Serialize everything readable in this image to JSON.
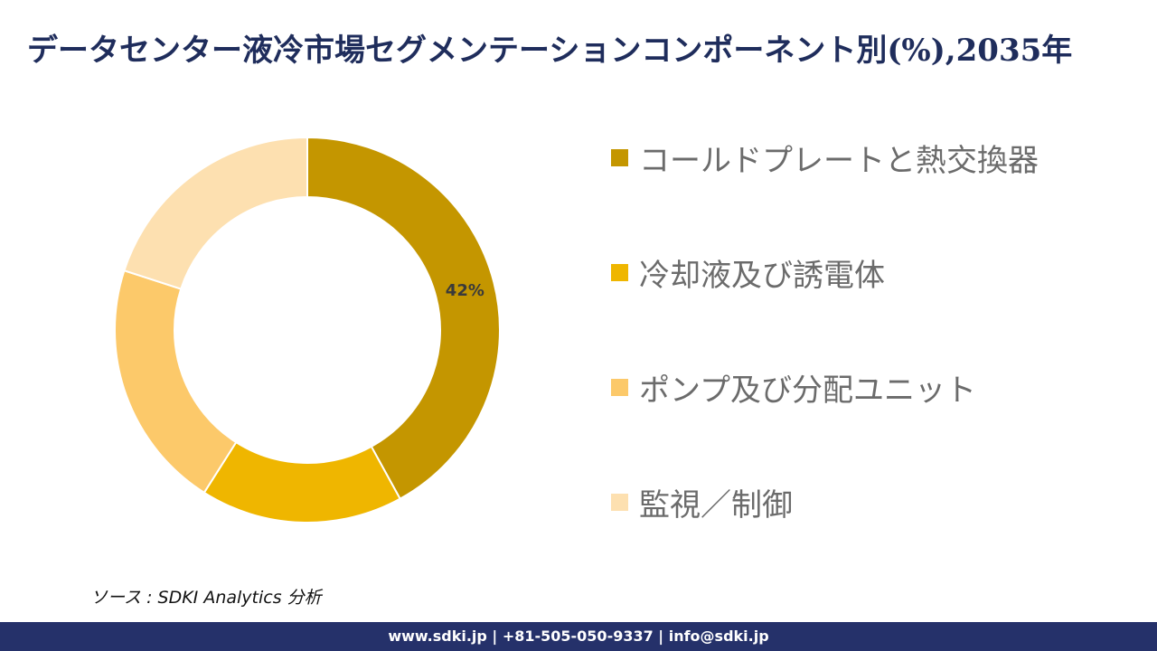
{
  "title": "データセンター液冷市場セグメンテーションコンポーネント別(%),2035年",
  "chart_data": {
    "type": "pie",
    "donut": true,
    "categories": [
      "コールドプレートと熱交換器",
      "冷却液及び誘電体",
      "ポンプ及び分配ユニット",
      "監視／制御"
    ],
    "values": [
      42,
      17,
      21,
      20
    ],
    "colors": [
      "#c49600",
      "#efb600",
      "#fcc96a",
      "#fde0b0"
    ],
    "data_labels": [
      "42%",
      "",
      "",
      ""
    ],
    "legend_position": "right"
  },
  "source": "ソース : SDKI Analytics 分析",
  "footer": "www.sdki.jp | +81-505-050-9337 | info@sdki.jp"
}
